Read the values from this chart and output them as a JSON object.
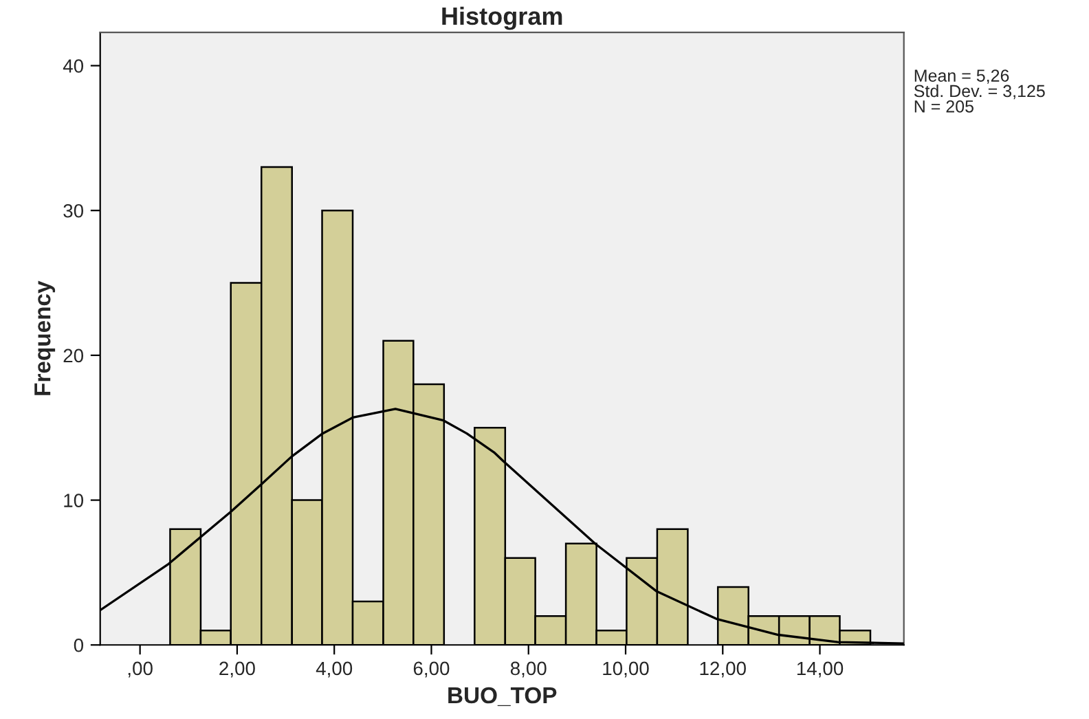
{
  "chart_data": {
    "type": "histogram",
    "title": "Histogram",
    "xlabel": "BUO_TOP",
    "ylabel": "Frequency",
    "bins": [
      0.62,
      1.25,
      1.87,
      2.5,
      3.13,
      3.75,
      4.38,
      5.01,
      5.63,
      6.26,
      6.89,
      7.52,
      8.14,
      8.77,
      9.4,
      10.02,
      10.65,
      11.28,
      11.9,
      12.53,
      13.16,
      13.79,
      14.41,
      15.04
    ],
    "values": [
      8,
      1,
      25,
      33,
      10,
      30,
      3,
      21,
      18,
      0,
      15,
      6,
      2,
      7,
      1,
      6,
      8,
      0,
      4,
      2,
      2,
      2,
      1
    ],
    "color": "#d3cf98",
    "series": [
      {
        "type": "line",
        "color": "#000000",
        "x": [
          -0.82,
          0.59,
          1.87,
          2.5,
          3.12,
          3.76,
          4.38,
          5.26,
          6.25,
          6.73,
          7.29,
          7.48,
          9.37,
          10.64,
          11.87,
          13.14,
          14.37,
          15.73
        ],
        "values": [
          2.4,
          5.6,
          9.2,
          11.1,
          13.0,
          14.6,
          15.7,
          16.3,
          15.5,
          14.6,
          13.3,
          12.7,
          7.0,
          3.7,
          1.8,
          0.7,
          0.2,
          0.1
        ]
      }
    ],
    "xlim": [
      -0.82,
      15.73
    ],
    "ylim": [
      0,
      42.3
    ],
    "xticks": [
      {
        "value": 0,
        "label": ",00"
      },
      {
        "value": 2,
        "label": "2,00"
      },
      {
        "value": 4,
        "label": "4,00"
      },
      {
        "value": 6,
        "label": "6,00"
      },
      {
        "value": 8,
        "label": "8,00"
      },
      {
        "value": 10,
        "label": "10,00"
      },
      {
        "value": 12,
        "label": "12,00"
      },
      {
        "value": 14,
        "label": "14,00"
      }
    ],
    "yticks": [
      0,
      10,
      20,
      30,
      40
    ],
    "annotations": [
      "Mean = 5,26\nStd. Dev. = 3,125\nN = 205"
    ],
    "grid": false,
    "legend": false
  }
}
